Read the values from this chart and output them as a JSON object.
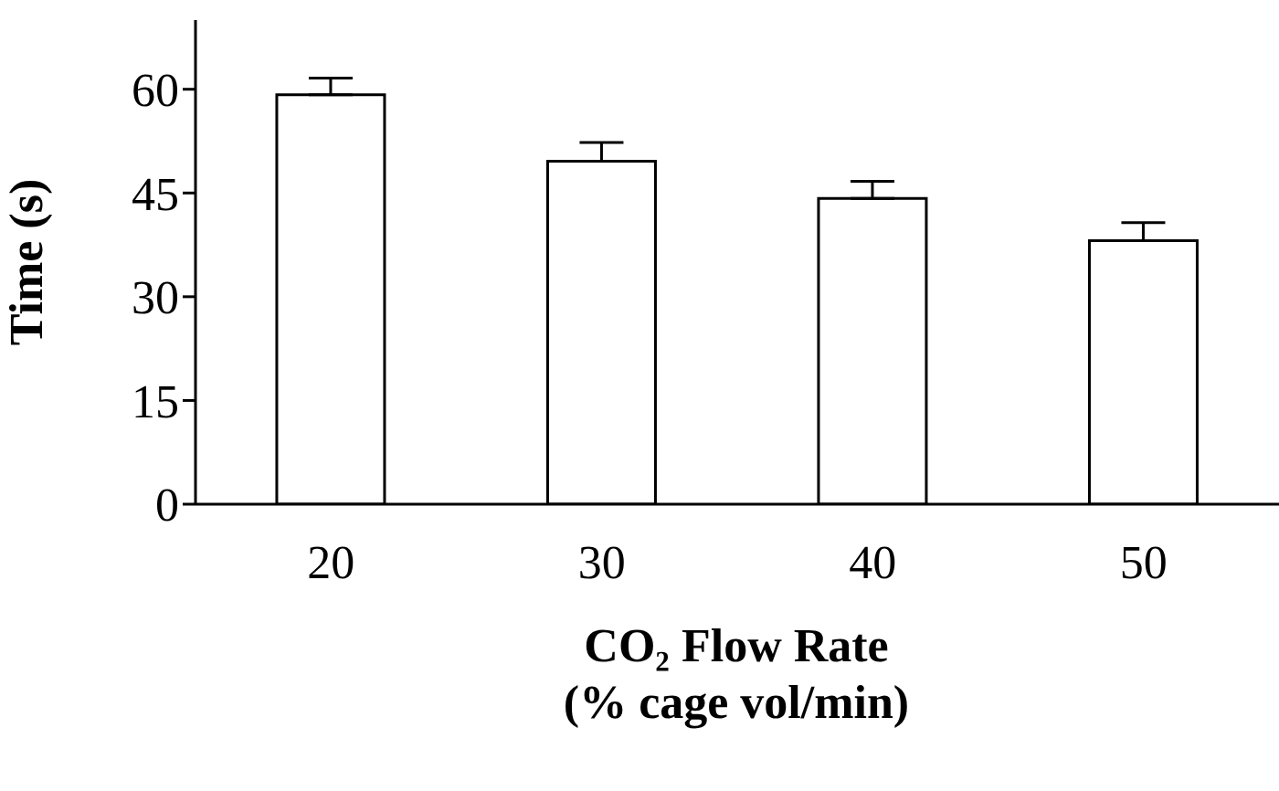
{
  "chart_data": {
    "type": "bar",
    "xlabel": "CO₂ Flow Rate\n(% cage vol/min)",
    "ylabel": "Time (s)",
    "categories": [
      "20",
      "30",
      "40",
      "50"
    ],
    "values": [
      59.2,
      49.6,
      44.2,
      38.1
    ],
    "errors": [
      [
        59.2,
        61.6
      ],
      [
        49.6,
        52.3
      ],
      [
        44.2,
        46.7
      ],
      [
        38.1,
        40.7
      ]
    ],
    "color": "#ffffff",
    "ylim": [
      0,
      70
    ],
    "yticks": [
      0,
      15,
      30,
      45,
      60
    ],
    "grid": false,
    "legend": false
  }
}
